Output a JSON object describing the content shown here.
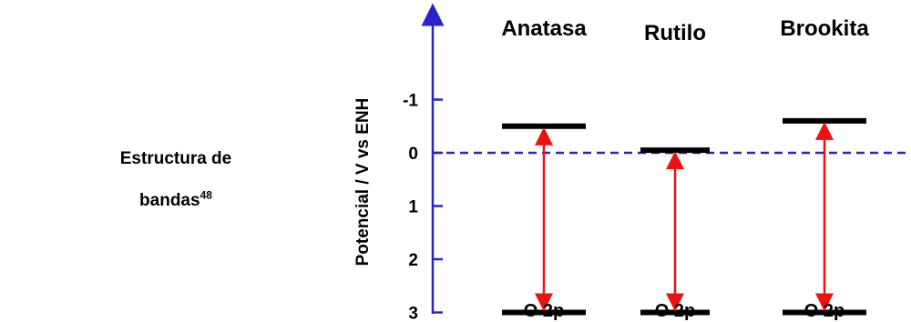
{
  "left_label": {
    "text": "Estructura de bandas",
    "line1": "Estructura de",
    "line2": "bandas",
    "superscript": "48"
  },
  "chart_data": {
    "type": "band-diagram",
    "ylabel": "Potencial / V vs ENH",
    "yticks": [
      "-1",
      "0",
      "1",
      "2",
      "3"
    ],
    "ylim": [
      -2.4,
      3.6
    ],
    "reference_line_value": 0,
    "phases": [
      {
        "name": "Anatasa",
        "conduction_band": -0.5,
        "valence_band": 3.0,
        "valence_label": "O 2p"
      },
      {
        "name": "Rutilo",
        "conduction_band": -0.05,
        "valence_band": 3.0,
        "valence_label": "O 2p"
      },
      {
        "name": "Brookita",
        "conduction_band": -0.6,
        "valence_band": 3.0,
        "valence_label": "O 2p"
      }
    ],
    "colors": {
      "axis": "#2a22c8",
      "arrow": "#ee1111",
      "band": "#000000",
      "reference": "#2a22c8"
    }
  }
}
